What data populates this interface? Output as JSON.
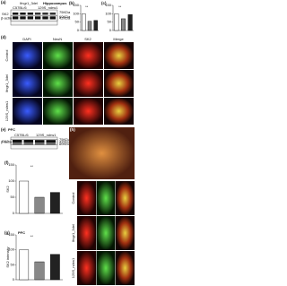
{
  "panels": {
    "a": {
      "label": "(a)",
      "region": "Hippocampus",
      "groups": [
        "C57BL/6",
        "Ifngr1_3del",
        "129S_ndrw1"
      ],
      "proteins": [
        "SK2",
        "β-actin"
      ],
      "markers": [
        "75KDa",
        "60KDa",
        "42KDa"
      ]
    },
    "b": {
      "label": "(b)",
      "type": "bar",
      "categories": [
        null,
        null,
        null
      ],
      "values": [
        100,
        55,
        60
      ],
      "colors": [
        "#ffffff",
        "#888888",
        "#222222"
      ],
      "ylim": [
        0,
        150
      ],
      "yticks": [
        0,
        50,
        100,
        150
      ],
      "annotation": "**"
    },
    "c": {
      "label": "(c)",
      "type": "bar",
      "categories": [
        null,
        null,
        null
      ],
      "values": [
        100,
        70,
        95
      ],
      "colors": [
        "#ffffff",
        "#888888",
        "#222222"
      ],
      "ylim": [
        0,
        150
      ],
      "yticks": [
        0,
        50,
        100,
        150
      ],
      "annotation": "**"
    },
    "d": {
      "label": "(d)",
      "channels": [
        "DAPI",
        "NeuN",
        "SK2",
        "Merge"
      ],
      "rows": [
        "Control",
        "Ifngr1_3del",
        "129S_ndrw1"
      ]
    },
    "e": {
      "label": "(e)",
      "region": "PFC",
      "groups": [
        "C57BL/6",
        "129S_ndrw1"
      ],
      "proteins": [
        "SK2",
        "β-actin"
      ],
      "markers": [
        "75KDa",
        "60KDa",
        "42KDa"
      ]
    },
    "f": {
      "label": "(f)",
      "type": "bar",
      "ylabel": "SK2",
      "categories": [
        null,
        null,
        null
      ],
      "values": [
        100,
        50,
        65
      ],
      "colors": [
        "#ffffff",
        "#888888",
        "#222222"
      ],
      "ylim": [
        0,
        150
      ],
      "yticks": [
        0,
        50,
        100,
        150
      ],
      "annotation": "**"
    },
    "g": {
      "label": "(g)",
      "region": "PFC",
      "type": "bar",
      "ylabel": "SK2 intensity",
      "categories": [
        null,
        null,
        null
      ],
      "values": [
        100,
        60,
        85
      ],
      "colors": [
        "#ffffff",
        "#888888",
        "#222222"
      ],
      "ylim": [
        0,
        150
      ],
      "yticks": [
        0,
        50,
        100,
        150
      ],
      "annotation": "**"
    },
    "h": {
      "label": "(h)",
      "rows": [
        "Control",
        "Ifngr1_3del",
        "129S_ndrw1"
      ]
    }
  }
}
